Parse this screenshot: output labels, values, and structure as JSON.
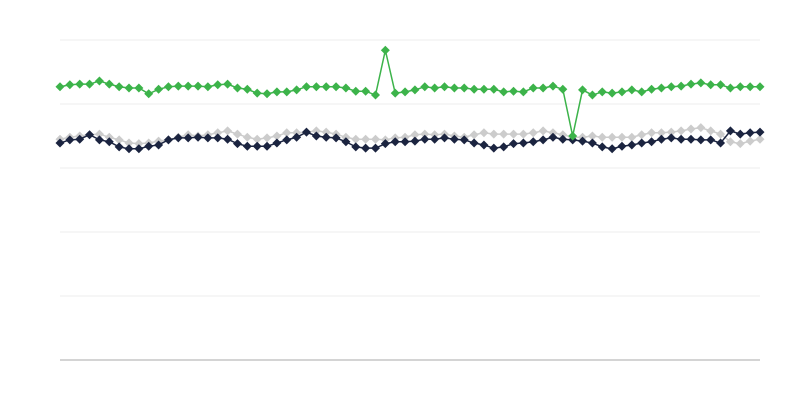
{
  "chart_data": {
    "type": "line",
    "title": "",
    "xlabel": "",
    "ylabel": "",
    "ylim": [
      0,
      5
    ],
    "grid": true,
    "gridlines_y": [
      1,
      2,
      3,
      4,
      5
    ],
    "marker": "diamond",
    "point_count": 72,
    "series": [
      {
        "color": "#cccccc",
        "values": [
          3.45,
          3.48,
          3.5,
          3.52,
          3.53,
          3.48,
          3.44,
          3.39,
          3.38,
          3.39,
          3.42,
          3.44,
          3.48,
          3.52,
          3.5,
          3.52,
          3.55,
          3.58,
          3.53,
          3.48,
          3.45,
          3.47,
          3.5,
          3.55,
          3.55,
          3.56,
          3.58,
          3.56,
          3.53,
          3.48,
          3.45,
          3.45,
          3.45,
          3.44,
          3.47,
          3.48,
          3.52,
          3.53,
          3.52,
          3.53,
          3.5,
          3.48,
          3.52,
          3.55,
          3.53,
          3.53,
          3.53,
          3.53,
          3.55,
          3.58,
          3.55,
          3.52,
          3.48,
          3.48,
          3.5,
          3.48,
          3.48,
          3.48,
          3.48,
          3.52,
          3.55,
          3.55,
          3.56,
          3.58,
          3.61,
          3.63,
          3.58,
          3.53,
          3.41,
          3.38,
          3.42,
          3.45
        ]
      },
      {
        "color": "#1b2440",
        "values": [
          3.39,
          3.44,
          3.45,
          3.52,
          3.44,
          3.41,
          3.33,
          3.3,
          3.3,
          3.34,
          3.36,
          3.44,
          3.47,
          3.47,
          3.48,
          3.47,
          3.47,
          3.45,
          3.38,
          3.34,
          3.34,
          3.34,
          3.39,
          3.44,
          3.48,
          3.56,
          3.5,
          3.48,
          3.47,
          3.41,
          3.33,
          3.31,
          3.31,
          3.38,
          3.41,
          3.41,
          3.42,
          3.45,
          3.45,
          3.47,
          3.45,
          3.44,
          3.39,
          3.36,
          3.31,
          3.33,
          3.38,
          3.39,
          3.41,
          3.44,
          3.48,
          3.45,
          3.44,
          3.42,
          3.39,
          3.33,
          3.3,
          3.34,
          3.36,
          3.39,
          3.41,
          3.45,
          3.47,
          3.45,
          3.45,
          3.44,
          3.44,
          3.39,
          3.58,
          3.53,
          3.55,
          3.56
        ]
      },
      {
        "color": "#3cb34a",
        "values": [
          4.27,
          4.3,
          4.31,
          4.31,
          4.36,
          4.31,
          4.27,
          4.25,
          4.25,
          4.16,
          4.23,
          4.27,
          4.28,
          4.28,
          4.28,
          4.27,
          4.3,
          4.31,
          4.25,
          4.23,
          4.17,
          4.16,
          4.19,
          4.19,
          4.22,
          4.27,
          4.27,
          4.27,
          4.27,
          4.25,
          4.2,
          4.2,
          4.14,
          4.84,
          4.17,
          4.19,
          4.22,
          4.27,
          4.25,
          4.27,
          4.25,
          4.25,
          4.23,
          4.23,
          4.23,
          4.19,
          4.2,
          4.19,
          4.25,
          4.25,
          4.28,
          4.23,
          3.5,
          4.22,
          4.14,
          4.19,
          4.17,
          4.19,
          4.22,
          4.19,
          4.23,
          4.25,
          4.27,
          4.28,
          4.31,
          4.33,
          4.3,
          4.3,
          4.25,
          4.27,
          4.27,
          4.27
        ]
      }
    ]
  }
}
